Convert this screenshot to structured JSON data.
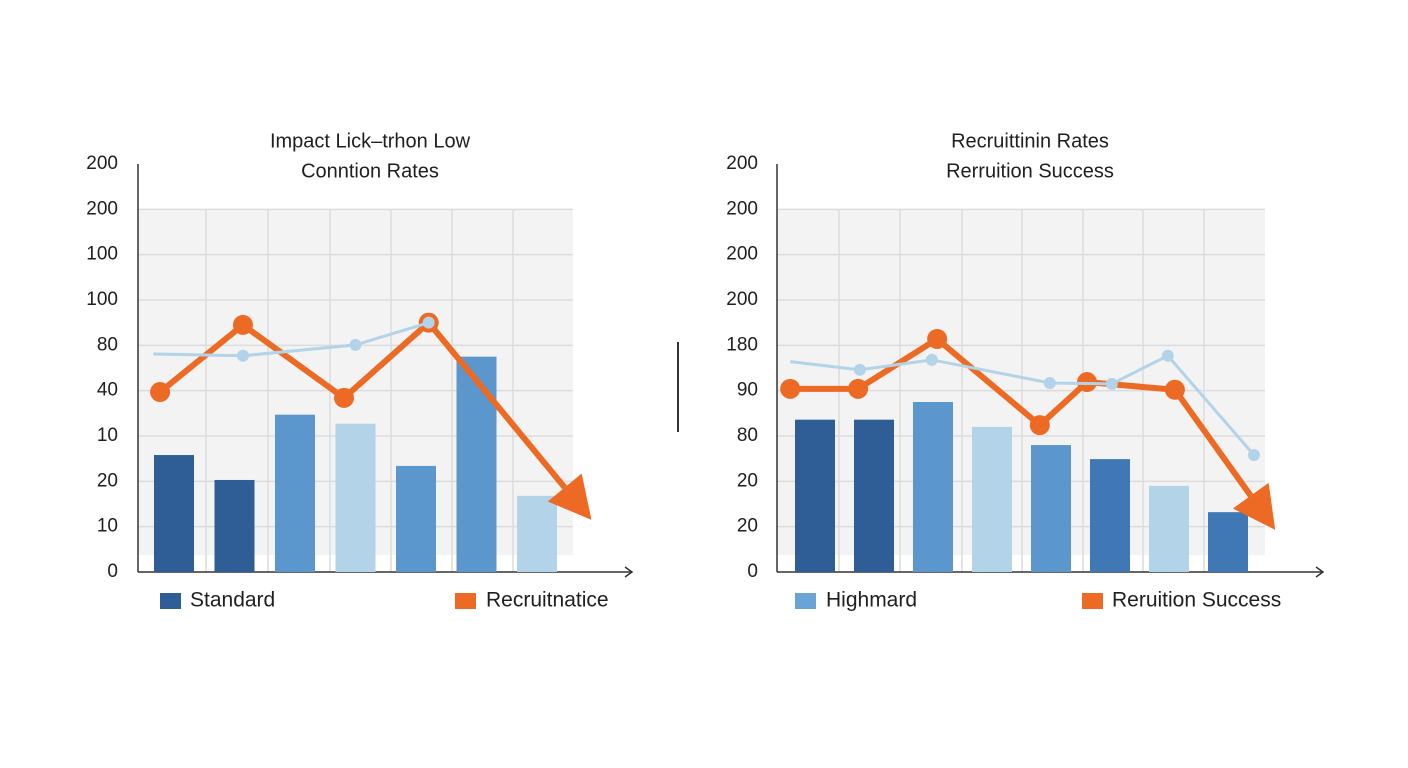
{
  "chart_data": [
    {
      "type": "bar",
      "title": [
        "Impact Lick–trhon Low",
        "Conntion Rates"
      ],
      "categories": [
        null,
        null,
        null,
        null,
        null,
        null,
        null
      ],
      "ylim": [
        0,
        9
      ],
      "yticks": [
        {
          "value": 0,
          "label": "0"
        },
        {
          "value": 1,
          "label": "10"
        },
        {
          "value": 2,
          "label": "20"
        },
        {
          "value": 3,
          "label": "10"
        },
        {
          "value": 4,
          "label": "40"
        },
        {
          "value": 5,
          "label": "80"
        },
        {
          "value": 6,
          "label": "100"
        },
        {
          "value": 7,
          "label": "100"
        },
        {
          "value": 8,
          "label": "200"
        },
        {
          "value": 9,
          "label": "200"
        }
      ],
      "grid": true,
      "series": [
        {
          "name": "Standard",
          "type": "bar",
          "color": "#2e5e95",
          "colors": [
            "#2e5e95",
            "#2e5e95",
            "#5b97cc",
            "#b3d3e8",
            "#5b97cc",
            "#5b97cc",
            "#b3d3e8"
          ],
          "values": [
            2.58,
            2.03,
            3.47,
            3.27,
            2.34,
            4.75,
            1.68
          ]
        },
        {
          "name": "Recruitnatice",
          "type": "line",
          "color": "#ec6a24",
          "x": [
            -0.23,
            1.14,
            2.81,
            4.21,
            6.9
          ],
          "values": [
            3.97,
            5.45,
            3.84,
            5.5,
            1.15
          ]
        },
        {
          "type": "line",
          "color": "#b3d3e8",
          "x": [
            -0.34,
            1.14,
            3.0,
            4.21
          ],
          "values": [
            4.81,
            4.77,
            5.01,
            5.5
          ]
        }
      ]
    },
    {
      "type": "bar",
      "title": [
        "Recruittinin Rates",
        "Rerruition Success"
      ],
      "categories": [
        null,
        null,
        null,
        null,
        null,
        null,
        null,
        null
      ],
      "ylim": [
        0,
        9
      ],
      "yticks": [
        {
          "value": 0,
          "label": "0"
        },
        {
          "value": 1,
          "label": "20"
        },
        {
          "value": 2,
          "label": "20"
        },
        {
          "value": 3,
          "label": "80"
        },
        {
          "value": 4,
          "label": "90"
        },
        {
          "value": 5,
          "label": "180"
        },
        {
          "value": 6,
          "label": "200"
        },
        {
          "value": 7,
          "label": "200"
        },
        {
          "value": 8,
          "label": "200"
        },
        {
          "value": 9,
          "label": "200"
        }
      ],
      "grid": true,
      "series": [
        {
          "name": "Highmard",
          "type": "bar",
          "color": "#6aa3d5",
          "colors": [
            "#2e5e95",
            "#2e5e95",
            "#5b97cc",
            "#b3d3e8",
            "#5b97cc",
            "#3f78b5",
            "#b3d3e8",
            "#3f78b5"
          ],
          "values": [
            3.36,
            3.36,
            3.75,
            3.2,
            2.8,
            2.49,
            1.9,
            1.32
          ]
        },
        {
          "name": "Reruition Success",
          "type": "line",
          "color": "#ec6a24",
          "x": [
            -0.42,
            0.73,
            2.07,
            3.81,
            4.61,
            6.1,
            7.8
          ],
          "values": [
            4.04,
            4.04,
            5.14,
            3.24,
            4.19,
            4.02,
            0.93
          ]
        },
        {
          "type": "line",
          "color": "#b3d3e8",
          "x": [
            -0.42,
            0.76,
            1.98,
            3.98,
            5.03,
            5.98,
            7.44
          ],
          "values": [
            4.64,
            4.46,
            4.68,
            4.17,
            4.15,
            4.77,
            2.58
          ]
        }
      ]
    }
  ]
}
